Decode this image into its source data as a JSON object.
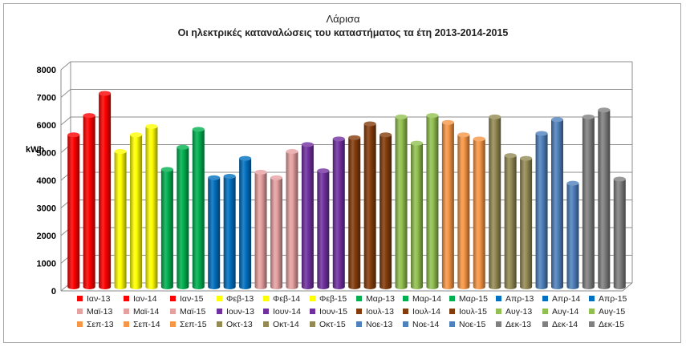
{
  "chart_data": {
    "type": "bar",
    "title": "Λάρισα",
    "subtitle": "Οι ηλεκτρικές καταναλώσεις του καταστήματος τα έτη 2013-2014-2015",
    "ylabel": "kWh",
    "ylim": [
      0,
      8000
    ],
    "yticks": [
      "0",
      "1000",
      "2000",
      "3000",
      "4000",
      "5000",
      "6000",
      "7000",
      "8000"
    ],
    "grid": true,
    "legend_position": "bottom",
    "series": [
      {
        "name": "Ιαν-13",
        "value": 5500,
        "color": "#ff0000"
      },
      {
        "name": "Ιαν-14",
        "value": 6200,
        "color": "#ff0000"
      },
      {
        "name": "Ιαν-15",
        "value": 7000,
        "color": "#ff0000"
      },
      {
        "name": "Φεβ-13",
        "value": 4900,
        "color": "#ffff00"
      },
      {
        "name": "Φεβ-14",
        "value": 5500,
        "color": "#ffff00"
      },
      {
        "name": "Φεβ-15",
        "value": 5800,
        "color": "#ffff00"
      },
      {
        "name": "Μαρ-13",
        "value": 4250,
        "color": "#00b050"
      },
      {
        "name": "Μαρ-14",
        "value": 5050,
        "color": "#00b050"
      },
      {
        "name": "Μαρ-15",
        "value": 5700,
        "color": "#00b050"
      },
      {
        "name": "Απρ-13",
        "value": 3950,
        "color": "#0070c0"
      },
      {
        "name": "Απρ-14",
        "value": 4000,
        "color": "#0070c0"
      },
      {
        "name": "Απρ-15",
        "value": 4650,
        "color": "#0070c0"
      },
      {
        "name": "Μαϊ-13",
        "value": 4150,
        "color": "#e6a0a0"
      },
      {
        "name": "Μαϊ-14",
        "value": 3950,
        "color": "#e6a0a0"
      },
      {
        "name": "Μαϊ-15",
        "value": 4900,
        "color": "#e6a0a0"
      },
      {
        "name": "Ιουν-13",
        "value": 5150,
        "color": "#7030a0"
      },
      {
        "name": "Ιουν-14",
        "value": 4200,
        "color": "#7030a0"
      },
      {
        "name": "Ιουν-15",
        "value": 5350,
        "color": "#7030a0"
      },
      {
        "name": "Ιουλ-13",
        "value": 5400,
        "color": "#843c0c"
      },
      {
        "name": "Ιουλ-14",
        "value": 5900,
        "color": "#843c0c"
      },
      {
        "name": "Ιουλ-15",
        "value": 5500,
        "color": "#843c0c"
      },
      {
        "name": "Αυγ-13",
        "value": 6150,
        "color": "#92c050"
      },
      {
        "name": "Αυγ-14",
        "value": 5200,
        "color": "#92c050"
      },
      {
        "name": "Αυγ-15",
        "value": 6200,
        "color": "#92c050"
      },
      {
        "name": "Σεπ-13",
        "value": 5950,
        "color": "#f79646"
      },
      {
        "name": "Σεπ-14",
        "value": 5500,
        "color": "#f79646"
      },
      {
        "name": "Σεπ-15",
        "value": 5350,
        "color": "#f79646"
      },
      {
        "name": "Οκτ-13",
        "value": 6150,
        "color": "#948a54"
      },
      {
        "name": "Οκτ-14",
        "value": 4750,
        "color": "#948a54"
      },
      {
        "name": "Οκτ-15",
        "value": 4650,
        "color": "#948a54"
      },
      {
        "name": "Νοε-13",
        "value": 5550,
        "color": "#4f81bd"
      },
      {
        "name": "Νοε-14",
        "value": 6050,
        "color": "#4f81bd"
      },
      {
        "name": "Νοε-15",
        "value": 3750,
        "color": "#4f81bd"
      },
      {
        "name": "Δεκ-13",
        "value": 6150,
        "color": "#808080"
      },
      {
        "name": "Δεκ-14",
        "value": 6400,
        "color": "#808080"
      },
      {
        "name": "Δεκ-15",
        "value": 3900,
        "color": "#808080"
      }
    ]
  }
}
